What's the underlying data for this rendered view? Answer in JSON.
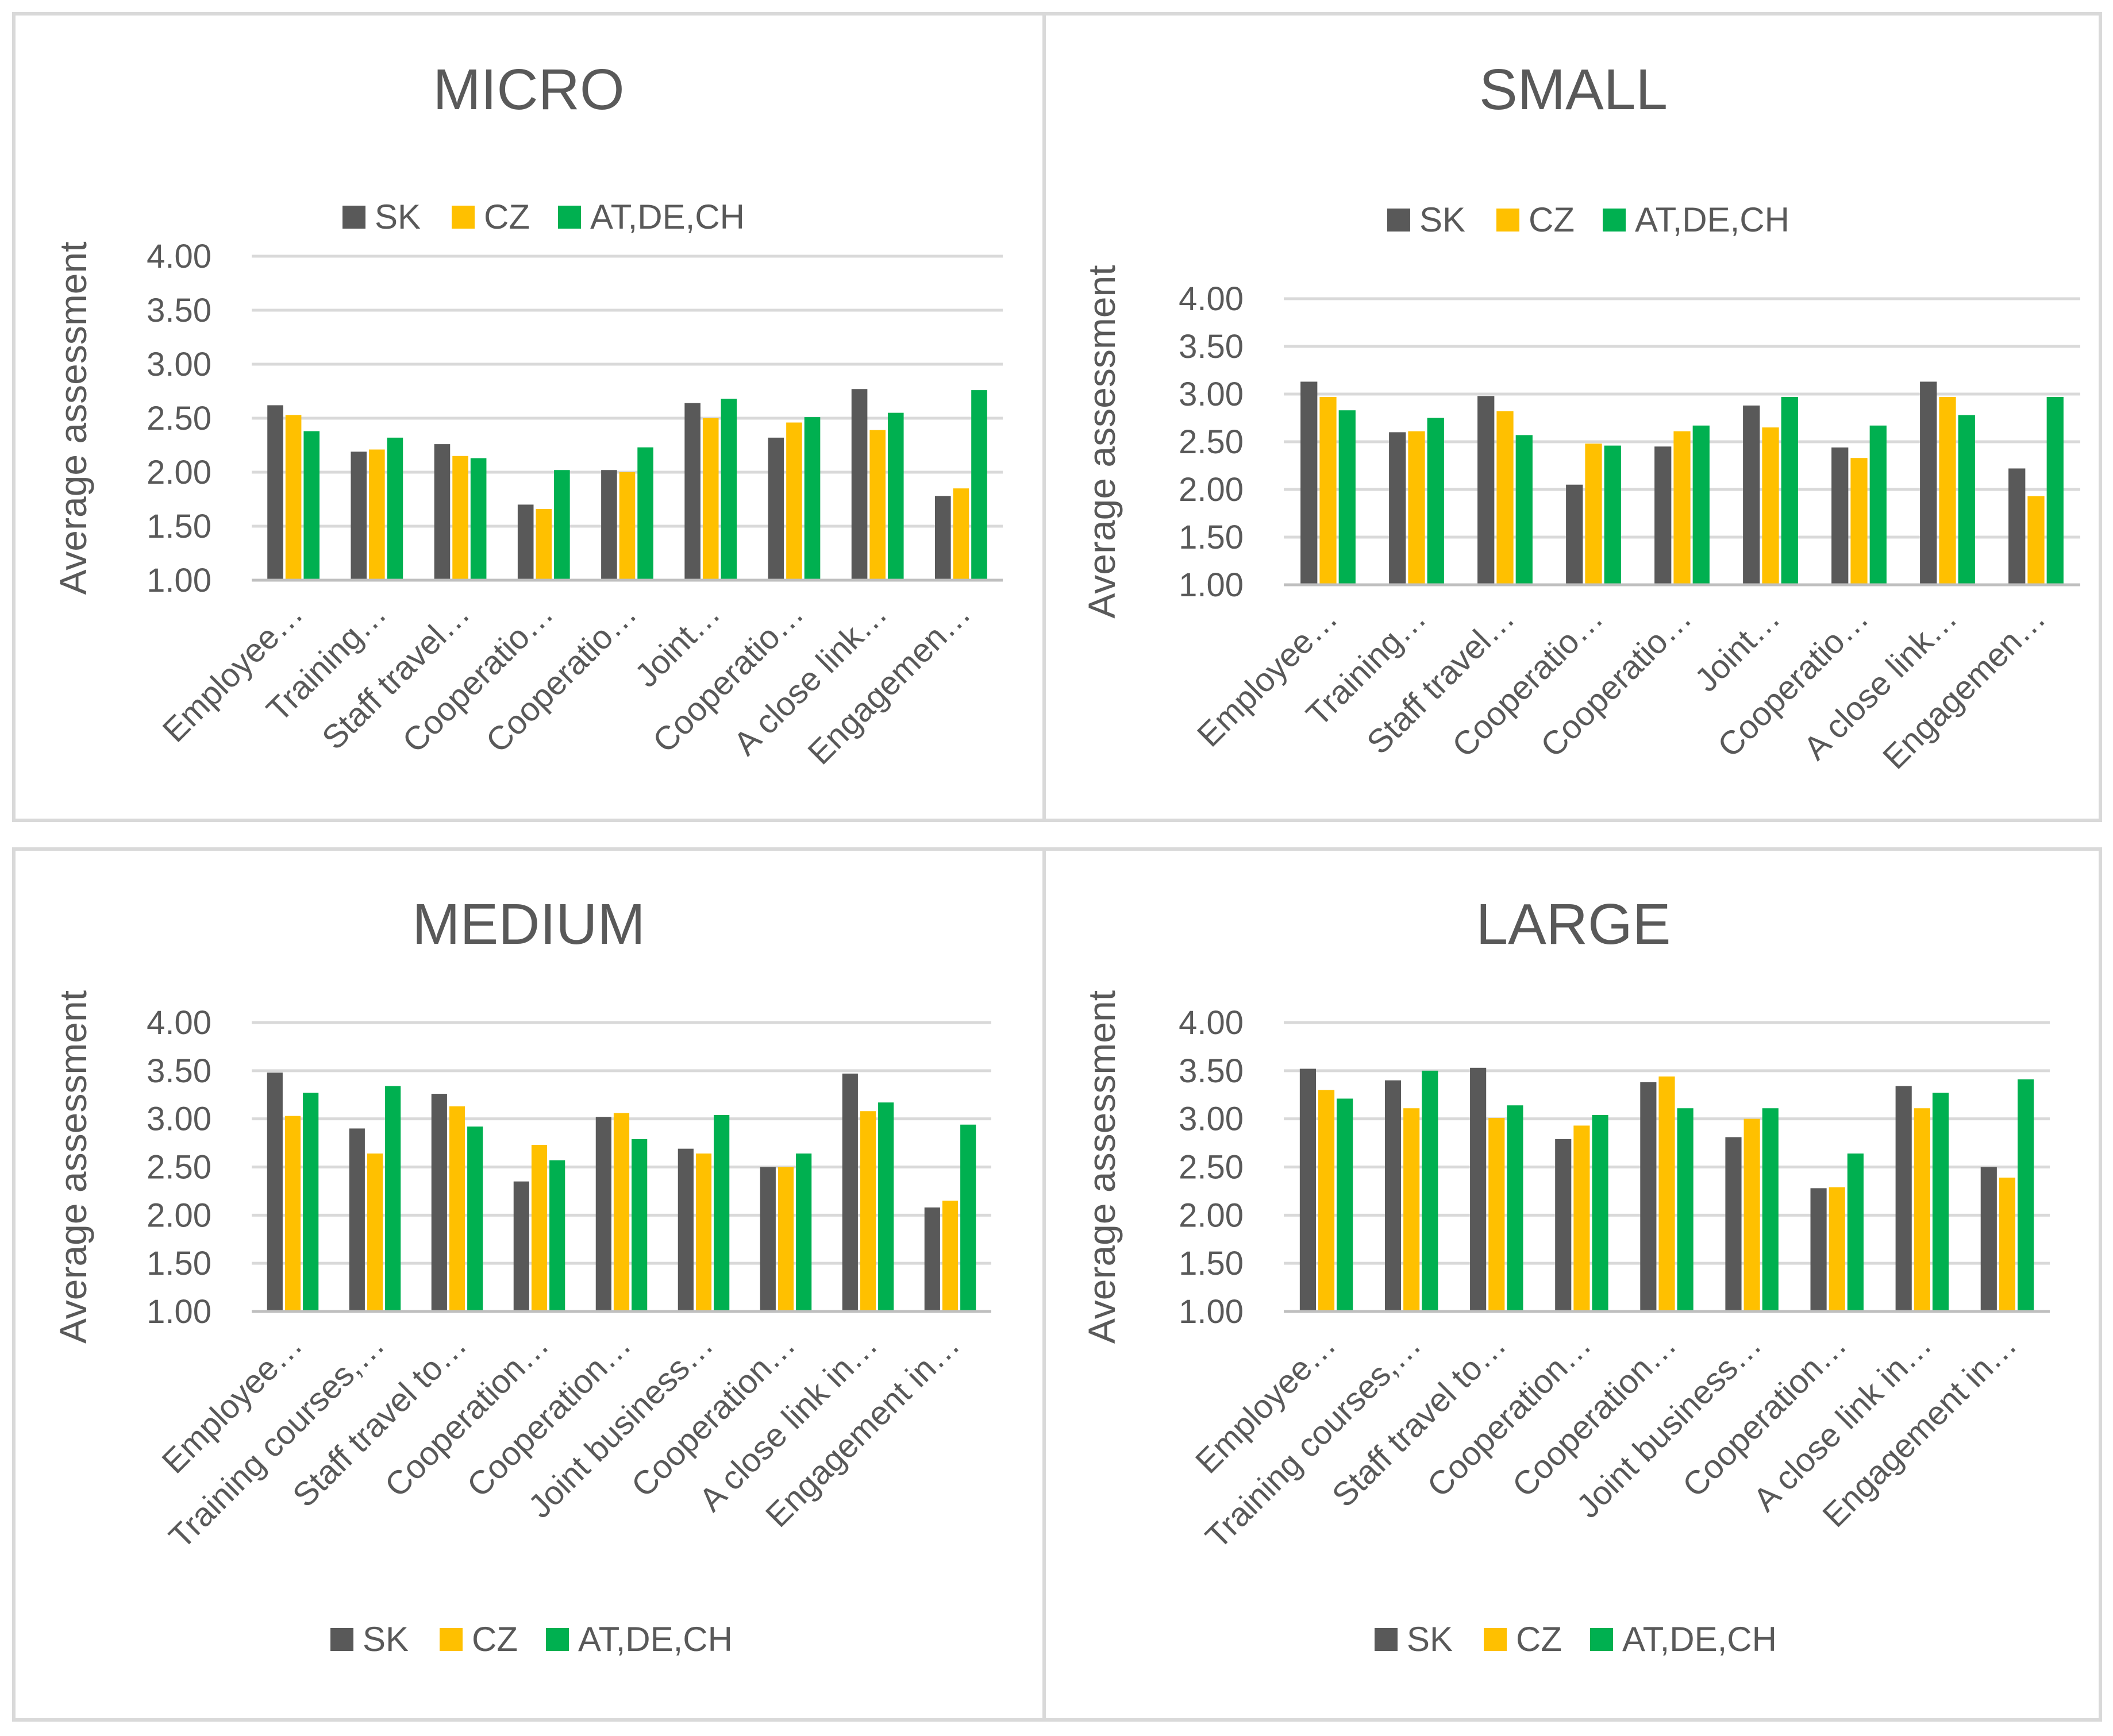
{
  "colors": {
    "SK": "#595959",
    "CZ": "#ffc000",
    "AT,DE,CH": "#00b050"
  },
  "chart_data": [
    {
      "type": "bar",
      "title": "MICRO",
      "ylabel": "Average assessment",
      "ylim": [
        1.0,
        4.0
      ],
      "yticks": [
        "1.00",
        "1.50",
        "2.00",
        "2.50",
        "3.00",
        "3.50",
        "4.00"
      ],
      "legend": "top",
      "grid": true,
      "categories": [
        "Employee…",
        "Training…",
        "Staff travel…",
        "Cooperatio…",
        "Cooperatio…",
        "Joint…",
        "Cooperatio…",
        "A close link…",
        "Engagemen…"
      ],
      "series": [
        {
          "name": "SK",
          "values": [
            2.62,
            2.19,
            2.26,
            1.7,
            2.02,
            2.64,
            2.32,
            2.77,
            1.78
          ]
        },
        {
          "name": "CZ",
          "values": [
            2.53,
            2.21,
            2.15,
            1.66,
            2.0,
            2.5,
            2.46,
            2.39,
            1.85
          ]
        },
        {
          "name": "AT,DE,CH",
          "values": [
            2.38,
            2.32,
            2.13,
            2.02,
            2.23,
            2.68,
            2.51,
            2.55,
            2.76
          ]
        }
      ]
    },
    {
      "type": "bar",
      "title": "SMALL",
      "ylabel": "Average assessment",
      "ylim": [
        1.0,
        4.0
      ],
      "yticks": [
        "1.00",
        "1.50",
        "2.00",
        "2.50",
        "3.00",
        "3.50",
        "4.00"
      ],
      "legend": "top",
      "grid": true,
      "categories": [
        "Employee…",
        "Training…",
        "Staff travel…",
        "Cooperatio…",
        "Cooperatio…",
        "Joint…",
        "Cooperatio…",
        "A close link…",
        "Engagemen…"
      ],
      "series": [
        {
          "name": "SK",
          "values": [
            3.13,
            2.6,
            2.98,
            2.05,
            2.45,
            2.88,
            2.44,
            3.13,
            2.22
          ]
        },
        {
          "name": "CZ",
          "values": [
            2.97,
            2.61,
            2.82,
            2.48,
            2.61,
            2.65,
            2.33,
            2.97,
            1.93
          ]
        },
        {
          "name": "AT,DE,CH",
          "values": [
            2.83,
            2.75,
            2.57,
            2.46,
            2.67,
            2.97,
            2.67,
            2.78,
            2.97
          ]
        }
      ]
    },
    {
      "type": "bar",
      "title": "MEDIUM",
      "ylabel": "Average assessment",
      "ylim": [
        1.0,
        4.0
      ],
      "yticks": [
        "1.00",
        "1.50",
        "2.00",
        "2.50",
        "3.00",
        "3.50",
        "4.00"
      ],
      "legend": "bottom",
      "grid": true,
      "categories": [
        "Employee…",
        "Training courses,…",
        "Staff travel to…",
        "Cooperation…",
        "Cooperation…",
        "Joint business…",
        "Cooperation…",
        "A close link in…",
        "Engagement in…"
      ],
      "series": [
        {
          "name": "SK",
          "values": [
            3.48,
            2.9,
            3.26,
            2.35,
            3.02,
            2.69,
            2.5,
            3.47,
            2.08
          ]
        },
        {
          "name": "CZ",
          "values": [
            3.03,
            2.64,
            3.13,
            2.73,
            3.06,
            2.64,
            2.5,
            3.08,
            2.15
          ]
        },
        {
          "name": "AT,DE,CH",
          "values": [
            3.27,
            3.34,
            2.92,
            2.57,
            2.79,
            3.04,
            2.64,
            3.17,
            2.94
          ]
        }
      ]
    },
    {
      "type": "bar",
      "title": "LARGE",
      "ylabel": "Average assessment",
      "ylim": [
        1.0,
        4.0
      ],
      "yticks": [
        "1.00",
        "1.50",
        "2.00",
        "2.50",
        "3.00",
        "3.50",
        "4.00"
      ],
      "legend": "bottom",
      "grid": true,
      "categories": [
        "Employee…",
        "Training courses,…",
        "Staff travel to…",
        "Cooperation…",
        "Cooperation…",
        "Joint business…",
        "Cooperation…",
        "A close link in…",
        "Engagement in…"
      ],
      "series": [
        {
          "name": "SK",
          "values": [
            3.52,
            3.4,
            3.53,
            2.79,
            3.38,
            2.81,
            2.28,
            3.34,
            2.5
          ]
        },
        {
          "name": "CZ",
          "values": [
            3.3,
            3.11,
            3.01,
            2.93,
            3.44,
            3.0,
            2.29,
            3.11,
            2.39
          ]
        },
        {
          "name": "AT,DE,CH",
          "values": [
            3.21,
            3.5,
            3.14,
            3.04,
            3.11,
            3.11,
            2.64,
            3.27,
            3.41
          ]
        }
      ]
    }
  ]
}
